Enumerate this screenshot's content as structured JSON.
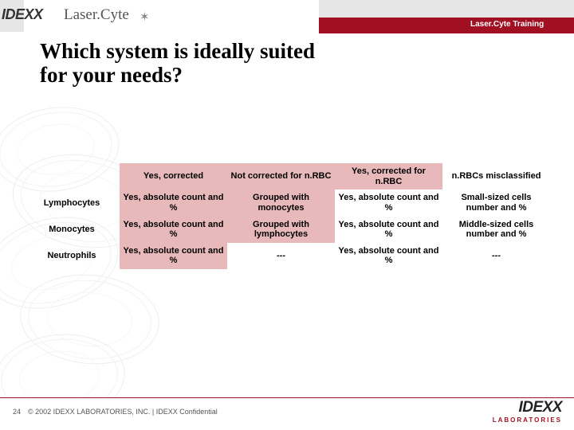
{
  "brand": {
    "idexx": "IDEXX",
    "lasercyte": "Laser.Cyte",
    "star": "✶"
  },
  "header": {
    "training": "Laser.Cyte Training"
  },
  "title_line1": "Which system is ideally suited",
  "title_line2": "for your needs?",
  "table": {
    "headers": [
      "Yes, corrected",
      "Not corrected for n.RBC",
      "Yes, corrected for n.RBC",
      "n.RBCs misclassified"
    ],
    "header_bg": [
      "#e8b9ba",
      "#e8b9ba",
      "#e8b9ba",
      "transparent"
    ],
    "rows": [
      {
        "label": "Lymphocytes",
        "cells": [
          "Yes, absolute count and %",
          "Grouped with monocytes",
          "Yes, absolute count and %",
          "Small-sized cells number and %"
        ],
        "cell_bg": [
          "#e8b9ba",
          "#e8b9ba",
          "transparent",
          "transparent"
        ]
      },
      {
        "label": "Monocytes",
        "cells": [
          "Yes, absolute count and %",
          "Grouped with lymphocytes",
          "Yes, absolute count and %",
          "Middle-sized cells number and %"
        ],
        "cell_bg": [
          "#e8b9ba",
          "#e8b9ba",
          "transparent",
          "transparent"
        ]
      },
      {
        "label": "Neutrophils",
        "cells": [
          "Yes, absolute count and %",
          "---",
          "Yes, absolute count and %",
          "---"
        ],
        "cell_bg": [
          "#e8b9ba",
          "transparent",
          "transparent",
          "transparent"
        ]
      }
    ]
  },
  "footer": {
    "slide_num": "24",
    "copyright": "© 2002 IDEXX LABORATORIES, INC.  | IDEXX Confidential",
    "logo_main": "IDEXX",
    "logo_sub": "LABORATORIES"
  },
  "colors": {
    "accent_red": "#a01022",
    "cell_pink": "#e8b9ba",
    "top_gray": "#e6e6e6"
  }
}
